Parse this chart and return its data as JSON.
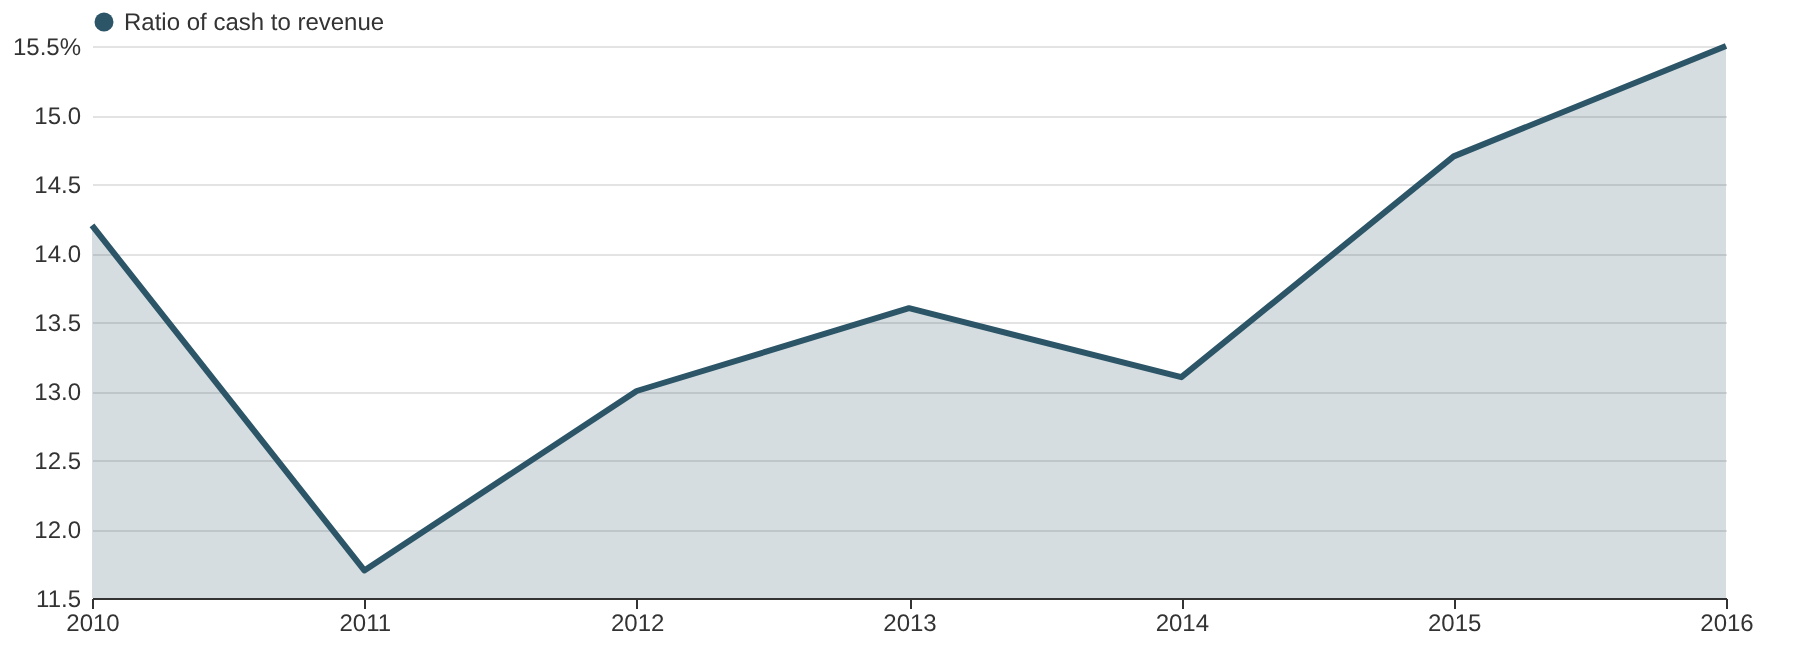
{
  "chart_data": {
    "type": "area",
    "x": [
      2010,
      2011,
      2012,
      2013,
      2014,
      2015,
      2016
    ],
    "series": [
      {
        "name": "Ratio of cash to revenue",
        "color": "#2c5568",
        "values": [
          14.2,
          11.7,
          13.0,
          13.6,
          13.1,
          14.7,
          15.5
        ]
      }
    ],
    "xlim": [
      2010,
      2016
    ],
    "xticks": [
      {
        "value": 2010,
        "label": "2010"
      },
      {
        "value": 2011,
        "label": "2011"
      },
      {
        "value": 2012,
        "label": "2012"
      },
      {
        "value": 2013,
        "label": "2013"
      },
      {
        "value": 2014,
        "label": "2014"
      },
      {
        "value": 2015,
        "label": "2015"
      },
      {
        "value": 2016,
        "label": "2016"
      }
    ],
    "ylim": [
      11.5,
      15.5
    ],
    "yticks": [
      {
        "value": 11.5,
        "label": "11.5"
      },
      {
        "value": 12.0,
        "label": "12.0"
      },
      {
        "value": 12.5,
        "label": "12.5"
      },
      {
        "value": 13.0,
        "label": "13.0"
      },
      {
        "value": 13.5,
        "label": "13.5"
      },
      {
        "value": 14.0,
        "label": "14.0"
      },
      {
        "value": 14.5,
        "label": "14.5"
      },
      {
        "value": 15.0,
        "label": "15.0"
      },
      {
        "value": 15.5,
        "label": "15.5%"
      }
    ],
    "grid": "y",
    "legend": "top left",
    "marker": "none"
  }
}
